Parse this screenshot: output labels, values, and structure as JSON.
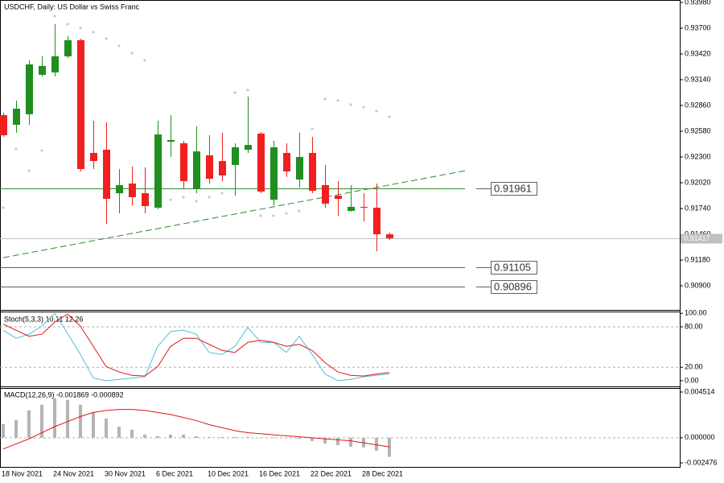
{
  "chart_data": [
    {
      "type": "candlestick",
      "title": "USDCHF, Daily:  US Dollar vs Swiss Franc",
      "categories": [
        "18 Nov 2021",
        null,
        null,
        null,
        "24 Nov 2021",
        null,
        null,
        null,
        "30 Nov 2021",
        null,
        null,
        null,
        "6 Dec 2021",
        null,
        null,
        null,
        "10 Dec 2021",
        null,
        null,
        null,
        "16 Dec 2021",
        null,
        null,
        null,
        "22 Dec 2021",
        null,
        null,
        null,
        "28 Dec 2021",
        null,
        null
      ],
      "open": [
        0.92755,
        0.9265,
        0.92764,
        0.93193,
        0.93219,
        0.93394,
        0.93569,
        0.92344,
        0.92379,
        0.91906,
        0.92011,
        0.91906,
        0.91749,
        0.92466,
        0.92449,
        0.9195,
        0.92318,
        0.92256,
        0.92213,
        0.92379,
        0.92554,
        0.91836,
        0.92344,
        0.92055,
        0.92344,
        0.91994,
        0.9188,
        0.91714,
        0.91758,
        0.91749,
        0.9146
      ],
      "high": [
        0.9278,
        0.92913,
        0.9335,
        0.93394,
        0.93744,
        0.93613,
        0.93586,
        0.92694,
        0.92676,
        0.92169,
        0.92195,
        0.92186,
        0.92694,
        0.92755,
        0.92475,
        0.92633,
        0.92536,
        0.92563,
        0.92449,
        0.92956,
        0.92571,
        0.92475,
        0.92449,
        0.92563,
        0.92519,
        0.92213,
        0.92038,
        0.91994,
        0.91906,
        0.92011,
        0.91478
      ],
      "low": [
        0.92519,
        0.92563,
        0.9265,
        0.93175,
        0.93175,
        0.93376,
        0.92143,
        0.92169,
        0.91574,
        0.91687,
        0.91775,
        0.91687,
        0.91731,
        0.923,
        0.9195,
        0.91906,
        0.92011,
        0.92038,
        0.9188,
        0.92344,
        0.91906,
        0.91775,
        0.92082,
        0.91968,
        0.91906,
        0.91749,
        0.91661,
        0.91705,
        0.916,
        0.91276,
        0.91399
      ],
      "close": [
        0.92536,
        0.92825,
        0.93306,
        0.93289,
        0.93394,
        0.93569,
        0.92169,
        0.92256,
        0.91845,
        0.91994,
        0.91863,
        0.91766,
        0.92545,
        0.92484,
        0.92038,
        0.92361,
        0.92064,
        0.92099,
        0.92405,
        0.92431,
        0.91924,
        0.92405,
        0.92143,
        0.923,
        0.91933,
        0.91793,
        0.91845,
        0.91758,
        0.91749,
        0.9146,
        0.91417
      ],
      "sar": [
        0.91749,
        0.92388,
        0.92151,
        0.9237,
        0.93831,
        0.93744,
        0.937,
        0.93656,
        0.93586,
        0.93508,
        0.93429,
        0.9335,
        0.91819,
        0.91836,
        0.91863,
        0.91819,
        0.91863,
        0.91906,
        0.93,
        0.93026,
        0.91661,
        0.91661,
        0.91688,
        0.91714,
        0.92606,
        0.9293,
        0.92913,
        0.92869,
        0.92843,
        0.92799,
        0.92738
      ],
      "sar_color": "#c8c8c8",
      "up_color": "#1f8f1f",
      "down_color": "#f02020",
      "trendline": {
        "x": [
          0,
          35.9
        ],
        "y": [
          0.91206,
          0.92151
        ],
        "color": "#2e8b2e"
      },
      "hlines": [
        {
          "value": 0.91961,
          "label": "0.91961",
          "color": "#2e8b2e"
        },
        {
          "value": 0.91105,
          "label": "0.91105",
          "color": "#606060"
        },
        {
          "value": 0.90896,
          "label": "0.90896",
          "color": "#606060"
        }
      ],
      "bid": {
        "value": 0.91417,
        "label": "0.91417"
      },
      "ylim": [
        0.90638,
        0.94006
      ],
      "yticks": [
        {
          "value": 0.9398,
          "label": "0.93980"
        },
        {
          "value": 0.937,
          "label": "0.93700"
        },
        {
          "value": 0.9342,
          "label": "0.93420"
        },
        {
          "value": 0.9314,
          "label": "0.93140"
        },
        {
          "value": 0.9286,
          "label": "0.92860"
        },
        {
          "value": 0.9258,
          "label": "0.92580"
        },
        {
          "value": 0.923,
          "label": "0.92300"
        },
        {
          "value": 0.9202,
          "label": "0.92020"
        },
        {
          "value": 0.9174,
          "label": "0.91740"
        },
        {
          "value": 0.9146,
          "label": "0.91460"
        },
        {
          "value": 0.9118,
          "label": "0.91180"
        },
        {
          "value": 0.909,
          "label": "0.90900"
        }
      ]
    },
    {
      "type": "line",
      "title": "Stoch(5,3,3) 10.11 12.26",
      "series": [
        {
          "color": "#4fbfd6",
          "values": [
            75,
            63,
            69,
            81,
            100,
            70,
            39,
            4,
            0,
            2,
            4,
            6,
            51,
            73,
            75,
            69,
            42,
            39,
            51,
            79,
            57,
            57,
            42,
            66,
            39,
            10,
            0,
            2,
            6,
            8,
            10.11
          ]
        },
        {
          "color": "#e0161b",
          "values": [
            84,
            75,
            66,
            69,
            87,
            99,
            81,
            51,
            21,
            13,
            8,
            7,
            21,
            51,
            63,
            63,
            54,
            45,
            42,
            57,
            60,
            57,
            51,
            54,
            45,
            27,
            13,
            8,
            7,
            10,
            12.26
          ]
        }
      ],
      "levels": [
        80,
        20
      ],
      "ylim": [
        -8.4,
        101.5
      ],
      "yticks": [
        {
          "value": 100,
          "label": "100.00"
        },
        {
          "value": 80,
          "label": "80.00"
        },
        {
          "value": 20,
          "label": "20.00"
        },
        {
          "value": 0,
          "label": "0.00"
        }
      ]
    },
    {
      "type": "macd",
      "title": "MACD(12,26,9) -0.001869 -0.000892",
      "series": [
        {
          "type": "bar",
          "color": "#b4b4b4",
          "values": [
            0.00135,
            0.00175,
            0.0027,
            0.00326,
            0.0039,
            0.00374,
            0.00326,
            0.00254,
            0.00191,
            0.00111,
            0.0008,
            0.00032,
            0.00016,
            0.00032,
            0.00032,
            0.00016,
            8e-05,
            8e-05,
            8e-05,
            8e-05,
            0,
            0,
            0,
            -8e-05,
            -0.00032,
            -0.00056,
            -0.00072,
            -0.00087,
            -0.00095,
            -0.00127,
            -0.001869
          ]
        },
        {
          "type": "line",
          "color": "#e0161b",
          "values": [
            -0.0011,
            -0.0006,
            -0.0001,
            0.0005,
            0.0011,
            0.0016,
            0.0021,
            0.0025,
            0.0027,
            0.0028,
            0.0028,
            0.0027,
            0.0025,
            0.0023,
            0.002,
            0.0017,
            0.0013,
            0.001,
            0.0007,
            0.0005,
            0.0004,
            0.0003,
            0.0002,
            0.0001,
            0,
            -0.0001,
            -0.0002,
            -0.0003,
            -0.0005,
            -0.0007,
            -0.000892
          ]
        }
      ],
      "levels": [
        0
      ],
      "ylim": [
        -0.00287,
        0.00483
      ],
      "yticks": [
        0.004514,
        {
          "value": 0,
          "label": "0.000000"
        },
        -0.002476
      ]
    }
  ]
}
